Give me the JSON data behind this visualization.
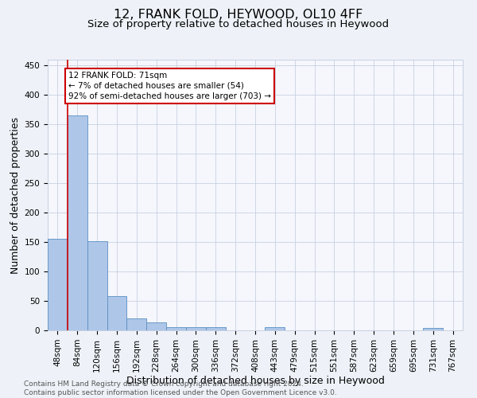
{
  "title1": "12, FRANK FOLD, HEYWOOD, OL10 4FF",
  "title2": "Size of property relative to detached houses in Heywood",
  "xlabel": "Distribution of detached houses by size in Heywood",
  "ylabel": "Number of detached properties",
  "categories": [
    "48sqm",
    "84sqm",
    "120sqm",
    "156sqm",
    "192sqm",
    "228sqm",
    "264sqm",
    "300sqm",
    "336sqm",
    "372sqm",
    "408sqm",
    "443sqm",
    "479sqm",
    "515sqm",
    "551sqm",
    "587sqm",
    "623sqm",
    "659sqm",
    "695sqm",
    "731sqm",
    "767sqm"
  ],
  "values": [
    155,
    365,
    152,
    58,
    20,
    14,
    5,
    5,
    5,
    0,
    0,
    5,
    0,
    0,
    0,
    0,
    0,
    0,
    0,
    4,
    0
  ],
  "bar_color": "#aec6e8",
  "bar_edge_color": "#5a8fc2",
  "annotation_lines": [
    "12 FRANK FOLD: 71sqm",
    "← 7% of detached houses are smaller (54)",
    "92% of semi-detached houses are larger (703) →"
  ],
  "ann_box_color": "#ffffff",
  "ann_box_edge": "#cc0000",
  "marker_line_color": "#cc0000",
  "ylim": [
    0,
    460
  ],
  "yticks": [
    0,
    50,
    100,
    150,
    200,
    250,
    300,
    350,
    400,
    450
  ],
  "footer": "Contains HM Land Registry data © Crown copyright and database right 2024.\nContains public sector information licensed under the Open Government Licence v3.0.",
  "bg_color": "#eef2f8",
  "plot_bg_color": "#f5f7fd",
  "grid_color": "#c8d0e0",
  "title1_fontsize": 11.5,
  "title2_fontsize": 9.5,
  "xlabel_fontsize": 9,
  "ylabel_fontsize": 9,
  "tick_fontsize": 7.5,
  "footer_fontsize": 6.5,
  "ann_fontsize": 7.5
}
